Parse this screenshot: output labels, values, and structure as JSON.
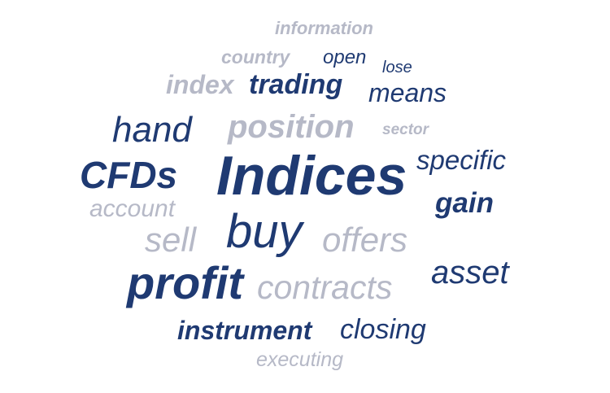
{
  "colors": {
    "dark": "#1f3a72",
    "light": "#b6b9c7",
    "background": "#ffffff"
  },
  "words": {
    "information": "information",
    "country": "country",
    "open": "open",
    "lose": "lose",
    "index": "index",
    "trading": "trading",
    "means": "means",
    "hand": "hand",
    "position": "position",
    "sector": "sector",
    "specific": "specific",
    "cfds": "CFDs",
    "indices": "Indices",
    "gain": "gain",
    "account": "account",
    "sell": "sell",
    "buy": "buy",
    "offers": "offers",
    "asset": "asset",
    "profit": "profit",
    "contracts": "contracts",
    "instrument": "instrument",
    "closing": "closing",
    "executing": "executing"
  }
}
